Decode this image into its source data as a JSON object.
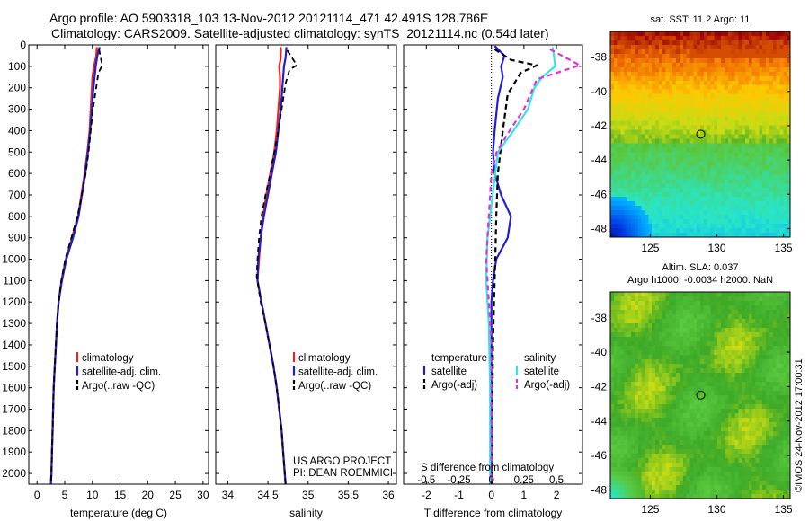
{
  "header": {
    "title_line1": "Argo profile: AO 5903318_103 13-Nov-2012 20121114_471 42.491S 128.786E",
    "title_line2": "Climatology: CARS2009. Satellite-adjusted climatology: synTS_20121114.nc (0.54d later)"
  },
  "colors": {
    "climatology": "#e8251d",
    "satellite": "#1f1fd6",
    "argo": "#000000",
    "salinity_satellite": "#32e6e6",
    "salinity_argo": "#e030e0"
  },
  "depth_axis": {
    "ylim": [
      0,
      2050
    ],
    "ticks": [
      0,
      100,
      200,
      300,
      400,
      500,
      600,
      700,
      800,
      900,
      1000,
      1100,
      1200,
      1300,
      1400,
      1500,
      1600,
      1700,
      1800,
      1900,
      2000
    ]
  },
  "chart_data": [
    {
      "type": "line",
      "id": "temperature",
      "xlabel": "temperature (deg C)",
      "xlim": [
        -1.5,
        31
      ],
      "xticks": [
        0,
        5,
        10,
        15,
        20,
        25,
        30
      ],
      "xtick_labels": [
        "0",
        "5",
        "10",
        "15",
        "20",
        "25",
        "30"
      ],
      "legend": [
        "climatology",
        "satellite-adj. clim.",
        "Argo(..raw -QC)"
      ],
      "series": [
        {
          "name": "climatology",
          "points": [
            [
              10.8,
              10
            ],
            [
              10.7,
              50
            ],
            [
              10.3,
              100
            ],
            [
              10.0,
              150
            ],
            [
              9.9,
              200
            ],
            [
              9.7,
              300
            ],
            [
              9.5,
              400
            ],
            [
              9.1,
              500
            ],
            [
              8.6,
              600
            ],
            [
              8.0,
              700
            ],
            [
              7.4,
              800
            ],
            [
              6.3,
              900
            ],
            [
              5.2,
              1000
            ],
            [
              4.4,
              1100
            ],
            [
              3.9,
              1200
            ],
            [
              3.6,
              1300
            ],
            [
              3.4,
              1400
            ],
            [
              3.2,
              1500
            ],
            [
              3.0,
              1600
            ],
            [
              2.9,
              1700
            ],
            [
              2.8,
              1800
            ],
            [
              2.7,
              1900
            ],
            [
              2.6,
              2000
            ],
            [
              2.5,
              2050
            ]
          ]
        },
        {
          "name": "satellite-adj. clim.",
          "points": [
            [
              11.3,
              10
            ],
            [
              10.9,
              50
            ],
            [
              10.6,
              100
            ],
            [
              10.4,
              150
            ],
            [
              10.2,
              200
            ],
            [
              9.9,
              300
            ],
            [
              9.6,
              400
            ],
            [
              9.2,
              500
            ],
            [
              8.7,
              600
            ],
            [
              8.1,
              700
            ],
            [
              7.5,
              800
            ],
            [
              6.5,
              900
            ],
            [
              5.3,
              1000
            ],
            [
              4.5,
              1100
            ],
            [
              3.9,
              1200
            ],
            [
              3.6,
              1300
            ],
            [
              3.4,
              1400
            ],
            [
              3.2,
              1500
            ],
            [
              3.0,
              1600
            ],
            [
              2.9,
              1700
            ],
            [
              2.8,
              1800
            ],
            [
              2.7,
              1900
            ],
            [
              2.6,
              2000
            ],
            [
              2.5,
              2050
            ]
          ]
        },
        {
          "name": "Argo(..raw -QC)",
          "points": [
            [
              11.2,
              20
            ],
            [
              11.5,
              60
            ],
            [
              11.8,
              95
            ],
            [
              11.1,
              130
            ],
            [
              10.8,
              180
            ],
            [
              10.1,
              300
            ],
            [
              9.7,
              400
            ],
            [
              9.3,
              500
            ],
            [
              8.8,
              600
            ],
            [
              8.1,
              700
            ],
            [
              7.3,
              800
            ],
            [
              6.2,
              900
            ],
            [
              5.1,
              1000
            ],
            [
              4.4,
              1100
            ],
            [
              3.9,
              1200
            ],
            [
              3.6,
              1300
            ],
            [
              3.4,
              1400
            ],
            [
              3.2,
              1500
            ],
            [
              3.0,
              1600
            ],
            [
              2.9,
              1700
            ],
            [
              2.8,
              1800
            ],
            [
              2.7,
              1900
            ],
            [
              2.6,
              2000
            ],
            [
              2.5,
              2050
            ]
          ]
        }
      ]
    },
    {
      "type": "line",
      "id": "salinity",
      "xlabel": "salinity",
      "xlim": [
        33.85,
        36.1
      ],
      "xticks": [
        34,
        34.5,
        35,
        35.5,
        36
      ],
      "xtick_labels": [
        "34",
        "34.5",
        "35",
        "35.5",
        "36"
      ],
      "legend": [
        "climatology",
        "satellite-adj. clim.",
        "Argo(..raw -QC)"
      ],
      "annotation": [
        "US ARGO PROJECT",
        "PI: DEAN ROEMMICH"
      ],
      "series": [
        {
          "name": "climatology",
          "points": [
            [
              34.66,
              10
            ],
            [
              34.66,
              60
            ],
            [
              34.64,
              100
            ],
            [
              34.65,
              150
            ],
            [
              34.65,
              200
            ],
            [
              34.63,
              300
            ],
            [
              34.61,
              400
            ],
            [
              34.58,
              500
            ],
            [
              34.53,
              600
            ],
            [
              34.48,
              700
            ],
            [
              34.44,
              800
            ],
            [
              34.41,
              900
            ],
            [
              34.39,
              1000
            ],
            [
              34.37,
              1100
            ],
            [
              34.42,
              1200
            ],
            [
              34.47,
              1300
            ],
            [
              34.52,
              1400
            ],
            [
              34.57,
              1500
            ],
            [
              34.61,
              1600
            ],
            [
              34.64,
              1700
            ],
            [
              34.67,
              1800
            ],
            [
              34.69,
              1900
            ],
            [
              34.71,
              2000
            ],
            [
              34.72,
              2050
            ]
          ]
        },
        {
          "name": "satellite-adj. clim.",
          "points": [
            [
              34.73,
              10
            ],
            [
              34.72,
              60
            ],
            [
              34.7,
              100
            ],
            [
              34.69,
              150
            ],
            [
              34.68,
              200
            ],
            [
              34.66,
              300
            ],
            [
              34.63,
              400
            ],
            [
              34.6,
              500
            ],
            [
              34.55,
              600
            ],
            [
              34.5,
              700
            ],
            [
              34.45,
              800
            ],
            [
              34.41,
              900
            ],
            [
              34.38,
              1000
            ],
            [
              34.37,
              1100
            ],
            [
              34.42,
              1200
            ],
            [
              34.47,
              1300
            ],
            [
              34.52,
              1400
            ],
            [
              34.57,
              1500
            ],
            [
              34.61,
              1600
            ],
            [
              34.64,
              1700
            ],
            [
              34.67,
              1800
            ],
            [
              34.69,
              1900
            ],
            [
              34.71,
              2000
            ],
            [
              34.72,
              2050
            ]
          ]
        },
        {
          "name": "Argo(..raw -QC)",
          "points": [
            [
              34.74,
              25
            ],
            [
              34.8,
              60
            ],
            [
              34.86,
              95
            ],
            [
              34.77,
              115
            ],
            [
              34.72,
              180
            ],
            [
              34.67,
              300
            ],
            [
              34.63,
              400
            ],
            [
              34.58,
              500
            ],
            [
              34.53,
              600
            ],
            [
              34.47,
              700
            ],
            [
              34.42,
              800
            ],
            [
              34.39,
              900
            ],
            [
              34.37,
              1000
            ],
            [
              34.36,
              1080
            ],
            [
              34.41,
              1200
            ],
            [
              34.47,
              1300
            ],
            [
              34.52,
              1400
            ],
            [
              34.57,
              1500
            ],
            [
              34.61,
              1600
            ],
            [
              34.64,
              1700
            ],
            [
              34.67,
              1800
            ],
            [
              34.69,
              1900
            ],
            [
              34.71,
              2000
            ],
            [
              34.72,
              2050
            ]
          ]
        }
      ]
    },
    {
      "type": "line",
      "id": "difference",
      "xlabel": "T difference from climatology",
      "xlim": [
        -2.7,
        2.8
      ],
      "xticks": [
        -2,
        -1,
        0,
        1,
        2
      ],
      "xtick_labels": [
        "-2",
        "-1",
        "0",
        "1",
        "2"
      ],
      "top_xlabel": "S difference from climatology",
      "top_xticks": [
        -0.5,
        -0.25,
        0,
        0.25,
        0.5
      ],
      "top_xtick_labels": [
        "-0.5",
        "-0.25",
        "0",
        "0.25",
        "0.5"
      ],
      "legend_headers": [
        "temperature",
        "salinity"
      ],
      "legend": [
        "satellite",
        "Argo(-adj)",
        "satellite",
        "Argo(-adj)"
      ],
      "series": [
        {
          "name": "satellite",
          "variable": "temperature",
          "points": [
            [
              0.1,
              5
            ],
            [
              0.4,
              50
            ],
            [
              0.3,
              100
            ],
            [
              0.35,
              150
            ],
            [
              0.2,
              250
            ],
            [
              0.1,
              400
            ],
            [
              0.05,
              500
            ],
            [
              0.1,
              600
            ],
            [
              0.3,
              700
            ],
            [
              0.6,
              800
            ],
            [
              0.5,
              900
            ],
            [
              0.15,
              1000
            ],
            [
              0.05,
              1100
            ],
            [
              0,
              1200
            ],
            [
              0,
              1400
            ],
            [
              0,
              2050
            ]
          ]
        },
        {
          "name": "Argo(-adj)",
          "variable": "temperature",
          "points": [
            [
              0.1,
              20
            ],
            [
              0.6,
              70
            ],
            [
              1.4,
              95
            ],
            [
              0.9,
              130
            ],
            [
              0.5,
              230
            ],
            [
              0.35,
              400
            ],
            [
              0.2,
              600
            ],
            [
              0.15,
              800
            ],
            [
              0.12,
              1000
            ],
            [
              0.08,
              1200
            ],
            [
              0.05,
              1400
            ],
            [
              0,
              2050
            ]
          ]
        },
        {
          "name": "satellite",
          "variable": "salinity",
          "points": [
            [
              0.47,
              10
            ],
            [
              0.48,
              50
            ],
            [
              0.49,
              100
            ],
            [
              0.39,
              150
            ],
            [
              0.33,
              200
            ],
            [
              0.28,
              300
            ],
            [
              0.17,
              400
            ],
            [
              0.05,
              500
            ],
            [
              0.01,
              700
            ],
            [
              -0.03,
              900
            ],
            [
              -0.04,
              1100
            ],
            [
              -0.02,
              1300
            ],
            [
              -0.01,
              1600
            ],
            [
              -0.01,
              2050
            ]
          ]
        },
        {
          "name": "Argo(-adj)",
          "variable": "salinity",
          "points": [
            [
              0.45,
              20
            ],
            [
              0.68,
              95
            ],
            [
              0.35,
              160
            ],
            [
              0.25,
              300
            ],
            [
              0.14,
              400
            ],
            [
              0.04,
              500
            ],
            [
              0.0,
              600
            ],
            [
              -0.02,
              800
            ],
            [
              -0.04,
              1000
            ],
            [
              -0.02,
              1200
            ],
            [
              0,
              1400
            ],
            [
              0,
              2050
            ]
          ]
        }
      ]
    },
    {
      "type": "heatmap",
      "id": "sst_map",
      "title": "sat. SST: 11.2 Argo: 11",
      "xlim": [
        122,
        135.5
      ],
      "ylim": [
        -48.5,
        -36.5
      ],
      "xticks": [
        125,
        130,
        135
      ],
      "xtick_labels": [
        "125",
        "130",
        "135"
      ],
      "yticks": [
        -38,
        -40,
        -42,
        -44,
        -46,
        -48
      ],
      "ytick_labels": [
        "-38",
        "-40",
        "-42",
        "-44",
        "-46",
        "-48"
      ],
      "marker": {
        "lon": 128.786,
        "lat": -42.491
      }
    },
    {
      "type": "heatmap",
      "id": "sla_map",
      "title_line1": "Altim. SLA: 0.037",
      "title_line2": "Argo h1000: -0.0034 h2000: NaN",
      "xlim": [
        122,
        135.5
      ],
      "ylim": [
        -48.5,
        -36.5
      ],
      "xticks": [
        125,
        130,
        135
      ],
      "xtick_labels": [
        "125",
        "130",
        "135"
      ],
      "yticks": [
        -38,
        -40,
        -42,
        -44,
        -46,
        -48
      ],
      "ytick_labels": [
        "-38",
        "-40",
        "-42",
        "-44",
        "-46",
        "-48"
      ],
      "marker": {
        "lon": 128.786,
        "lat": -42.491
      },
      "credit": "©IMOS 24-Nov-2012 17:00:31"
    }
  ]
}
